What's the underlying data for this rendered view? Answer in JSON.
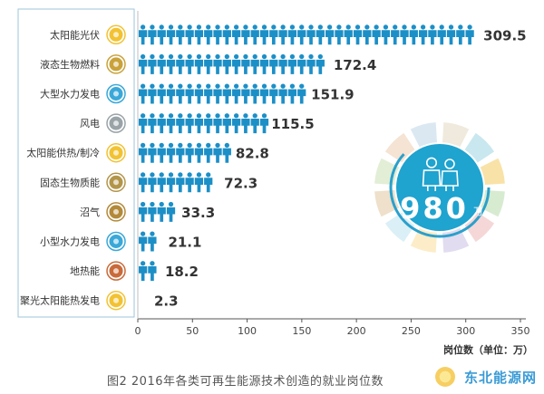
{
  "caption": "图2 2016年各类可再生能源技术创造的就业岗位数",
  "total_badge": {
    "value": "980",
    "unit": "万"
  },
  "watermark": {
    "text": "东北能源网",
    "sub": ""
  },
  "colors": {
    "bar": "#1c8fc7",
    "axis": "#555555",
    "label": "#333333",
    "value": "#333333",
    "box_border": "#9ec5d8"
  },
  "chart_data": {
    "type": "bar",
    "orientation": "horizontal",
    "categories": [
      "太阳能光伏",
      "液态生物燃料",
      "大型水力发电",
      "风电",
      "太阳能供热/制冷",
      "固态生物质能",
      "沼气",
      "小型水力发电",
      "地热能",
      "聚光太阳能热发电"
    ],
    "values": [
      309.5,
      172.4,
      151.9,
      115.5,
      82.8,
      72.3,
      33.3,
      21.1,
      18.2,
      2.3
    ],
    "value_labels": [
      "309.5",
      "172.4",
      "151.9",
      "115.5",
      "82.8",
      "72.3",
      "33.3",
      "21.1",
      "18.2",
      "2.3"
    ],
    "category_icons": [
      "sun-icon",
      "oil-drop-icon",
      "water-drop-icon",
      "wind-turbine-icon",
      "sun-icon",
      "leaf-icon",
      "gas-flame-icon",
      "water-drop-icon",
      "volcano-icon",
      "sun-icon"
    ],
    "icon_colors": [
      "#f2c232",
      "#c9a23a",
      "#3aa8d8",
      "#9aa3a8",
      "#f2c232",
      "#b3954a",
      "#b38a3a",
      "#3aa8d8",
      "#c96a3a",
      "#f2c232"
    ],
    "xlim": [
      0,
      350
    ],
    "xticks": [
      "0",
      "50",
      "100",
      "150",
      "200",
      "250",
      "300",
      "350"
    ],
    "xlabel": "岗位数（单位：万）",
    "ylabel": "",
    "title": "",
    "grid": false,
    "mark": "person-pictogram"
  }
}
